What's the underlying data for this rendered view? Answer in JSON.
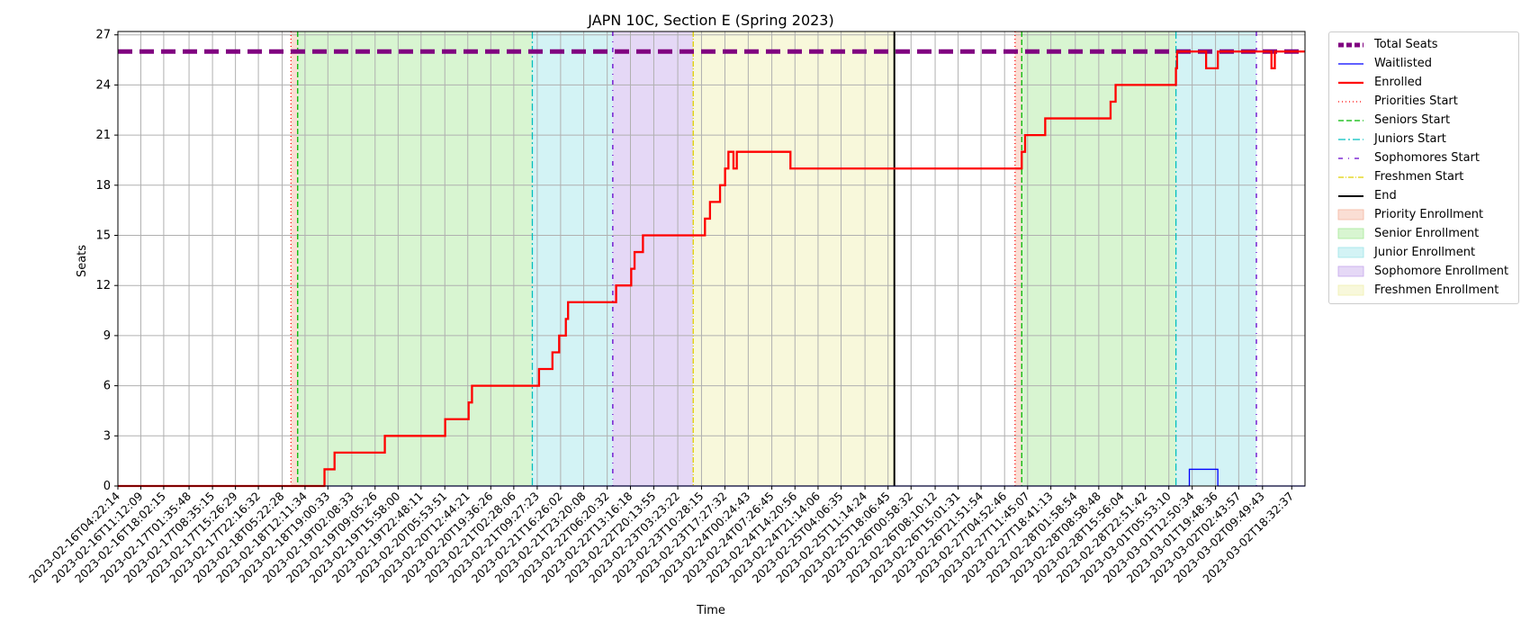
{
  "chart_data": {
    "type": "line",
    "title": "JAPN 10C, Section E (Spring 2023)",
    "xlabel": "Time",
    "ylabel": "Seats",
    "ylim": [
      0,
      27.2
    ],
    "yticks": [
      0,
      3,
      6,
      9,
      12,
      15,
      18,
      21,
      24,
      27
    ],
    "xlim": [
      "2023-02-16T04:22:14",
      "2023-03-02T22:30:00"
    ],
    "x_tick_labels": [
      "2023-02-16T04:22:14",
      "2023-02-16T11:12:09",
      "2023-02-16T18:02:15",
      "2023-02-17T01:35:48",
      "2023-02-17T08:35:15",
      "2023-02-17T15:26:29",
      "2023-02-17T22:16:32",
      "2023-02-18T05:22:28",
      "2023-02-18T12:11:34",
      "2023-02-18T19:00:33",
      "2023-02-19T02:08:33",
      "2023-02-19T09:05:26",
      "2023-02-19T15:58:00",
      "2023-02-19T22:48:11",
      "2023-02-20T05:53:51",
      "2023-02-20T12:44:21",
      "2023-02-20T19:36:26",
      "2023-02-21T02:28:06",
      "2023-02-21T09:27:23",
      "2023-02-21T16:26:02",
      "2023-02-21T23:20:08",
      "2023-02-22T06:20:32",
      "2023-02-22T13:16:18",
      "2023-02-22T20:13:55",
      "2023-02-23T03:23:22",
      "2023-02-23T10:28:15",
      "2023-02-23T17:27:32",
      "2023-02-24T00:24:43",
      "2023-02-24T07:26:45",
      "2023-02-24T14:20:56",
      "2023-02-24T21:14:06",
      "2023-02-25T04:06:35",
      "2023-02-25T11:14:24",
      "2023-02-25T18:06:45",
      "2023-02-26T00:58:32",
      "2023-02-26T08:10:12",
      "2023-02-26T15:01:31",
      "2023-02-26T21:51:54",
      "2023-02-27T04:52:46",
      "2023-02-27T11:45:07",
      "2023-02-27T18:41:13",
      "2023-02-28T01:58:54",
      "2023-02-28T08:58:48",
      "2023-02-28T15:56:04",
      "2023-02-28T22:51:42",
      "2023-03-01T05:53:10",
      "2023-03-01T12:50:34",
      "2023-03-01T19:48:36",
      "2023-03-02T02:43:57",
      "2023-03-02T09:49:43",
      "2023-03-02T18:32:37"
    ],
    "grid": true,
    "legend_position": "outside-right",
    "phase_lines": [
      {
        "name": "Priorities Start",
        "x": "2023-02-18T08:00:00",
        "color": "#ff0000",
        "dash": "1,3",
        "width": 1.3
      },
      {
        "name": "Seniors Start",
        "x": "2023-02-18T10:00:00",
        "color": "#00b800",
        "dash": "6,3",
        "width": 1.3
      },
      {
        "name": "Juniors Start",
        "x": "2023-02-21T08:00:00",
        "color": "#00bfbf",
        "dash": "8,3,2,3",
        "width": 1.3
      },
      {
        "name": "Sophomores Start",
        "x": "2023-02-22T08:00:00",
        "color": "#6600cc",
        "dash": "5,6,1,6",
        "width": 1.3
      },
      {
        "name": "Freshmen Start",
        "x": "2023-02-23T08:00:00",
        "color": "#e0d000",
        "dash": "6,2,1,2",
        "width": 1.3
      },
      {
        "name": "End",
        "x": "2023-02-25T20:00:00",
        "color": "#000000",
        "dash": "",
        "width": 2
      },
      {
        "name": "",
        "x": "2023-02-27T08:00:00",
        "color": "#ff0000",
        "dash": "1,3",
        "width": 1.3
      },
      {
        "name": "",
        "x": "2023-02-27T10:00:00",
        "color": "#00b800",
        "dash": "6,3",
        "width": 1.3
      },
      {
        "name": "",
        "x": "2023-03-01T08:00:00",
        "color": "#00bfbf",
        "dash": "8,3,2,3",
        "width": 1.3
      },
      {
        "name": "",
        "x": "2023-03-02T08:00:00",
        "color": "#6600cc",
        "dash": "5,6,1,6",
        "width": 1.3
      }
    ],
    "phase_spans": [
      {
        "name": "Priority Enrollment",
        "start": "2023-02-18T08:00:00",
        "end": "2023-02-18T10:00:00",
        "color": "#f4b6a0"
      },
      {
        "name": "Senior Enrollment",
        "start": "2023-02-18T10:00:00",
        "end": "2023-02-21T08:00:00",
        "color": "#a8e898"
      },
      {
        "name": "Junior Enrollment",
        "start": "2023-02-21T08:00:00",
        "end": "2023-02-22T08:00:00",
        "color": "#9ee4e8"
      },
      {
        "name": "Sophomore Enrollment",
        "start": "2023-02-22T08:00:00",
        "end": "2023-02-23T08:00:00",
        "color": "#c6a8ec"
      },
      {
        "name": "Freshmen Enrollment",
        "start": "2023-02-23T08:00:00",
        "end": "2023-02-25T20:00:00",
        "color": "#f0f0b0"
      },
      {
        "name": "",
        "start": "2023-02-27T08:00:00",
        "end": "2023-02-27T10:00:00",
        "color": "#f4b6a0"
      },
      {
        "name": "",
        "start": "2023-02-27T10:00:00",
        "end": "2023-03-01T08:00:00",
        "color": "#a8e898"
      },
      {
        "name": "",
        "start": "2023-03-01T08:00:00",
        "end": "2023-03-02T08:00:00",
        "color": "#9ee4e8"
      }
    ],
    "series": [
      {
        "name": "Total Seats",
        "color": "#800080",
        "style": "dashed-thick",
        "points": [
          [
            "2023-02-16T04:22:14",
            26
          ],
          [
            "2023-03-02T22:30:00",
            26
          ]
        ]
      },
      {
        "name": "Waitlisted",
        "color": "#0000ff",
        "style": "thin",
        "points": [
          [
            "2023-02-16T04:22:14",
            0
          ],
          [
            "2023-03-01T12:00:00",
            0
          ],
          [
            "2023-03-01T12:00:00",
            1
          ],
          [
            "2023-03-01T20:30:00",
            1
          ],
          [
            "2023-03-01T20:30:00",
            0
          ],
          [
            "2023-03-02T22:30:00",
            0
          ]
        ]
      },
      {
        "name": "Enrolled",
        "color": "#ff0000",
        "style": "step",
        "points": [
          [
            "2023-02-16T04:22:14",
            0
          ],
          [
            "2023-02-18T18:00:00",
            1
          ],
          [
            "2023-02-18T21:00:00",
            2
          ],
          [
            "2023-02-19T12:00:00",
            3
          ],
          [
            "2023-02-20T06:00:00",
            4
          ],
          [
            "2023-02-20T13:00:00",
            5
          ],
          [
            "2023-02-20T14:00:00",
            6
          ],
          [
            "2023-02-21T10:00:00",
            7
          ],
          [
            "2023-02-21T14:00:00",
            8
          ],
          [
            "2023-02-21T16:00:00",
            9
          ],
          [
            "2023-02-21T18:00:00",
            10
          ],
          [
            "2023-02-21T18:40:00",
            11
          ],
          [
            "2023-02-22T09:00:00",
            12
          ],
          [
            "2023-02-22T13:30:00",
            13
          ],
          [
            "2023-02-22T14:30:00",
            14
          ],
          [
            "2023-02-22T17:00:00",
            15
          ],
          [
            "2023-02-23T11:30:00",
            16
          ],
          [
            "2023-02-23T13:00:00",
            17
          ],
          [
            "2023-02-23T16:00:00",
            18
          ],
          [
            "2023-02-23T17:30:00",
            19
          ],
          [
            "2023-02-23T18:30:00",
            20
          ],
          [
            "2023-02-23T20:00:00",
            19
          ],
          [
            "2023-02-23T21:00:00",
            20
          ],
          [
            "2023-02-24T13:00:00",
            19
          ],
          [
            "2023-02-27T10:00:00",
            20
          ],
          [
            "2023-02-27T11:00:00",
            21
          ],
          [
            "2023-02-27T17:00:00",
            22
          ],
          [
            "2023-02-28T12:30:00",
            23
          ],
          [
            "2023-02-28T14:00:00",
            24
          ],
          [
            "2023-03-01T08:00:00",
            25
          ],
          [
            "2023-03-01T08:20:00",
            26
          ],
          [
            "2023-03-01T17:00:00",
            25
          ],
          [
            "2023-03-01T20:30:00",
            26
          ],
          [
            "2023-03-02T12:30:00",
            25
          ],
          [
            "2023-03-02T13:30:00",
            26
          ],
          [
            "2023-03-02T22:30:00",
            26
          ]
        ]
      }
    ],
    "legend": [
      {
        "label": "Total Seats",
        "kind": "line",
        "color": "#800080",
        "dash": "6,3",
        "width": 5
      },
      {
        "label": "Waitlisted",
        "kind": "line",
        "color": "#0000ff",
        "dash": "",
        "width": 1.2
      },
      {
        "label": "Enrolled",
        "kind": "line",
        "color": "#ff0000",
        "dash": "",
        "width": 2.2
      },
      {
        "label": "Priorities Start",
        "kind": "line",
        "color": "#ff0000",
        "dash": "1,3",
        "width": 1.3
      },
      {
        "label": "Seniors Start",
        "kind": "line",
        "color": "#00b800",
        "dash": "6,3",
        "width": 1.3
      },
      {
        "label": "Juniors Start",
        "kind": "line",
        "color": "#00bfbf",
        "dash": "8,3,2,3",
        "width": 1.3
      },
      {
        "label": "Sophomores Start",
        "kind": "line",
        "color": "#6600cc",
        "dash": "5,6,1,6",
        "width": 1.3
      },
      {
        "label": "Freshmen Start",
        "kind": "line",
        "color": "#e0d000",
        "dash": "6,2,1,2",
        "width": 1.3
      },
      {
        "label": "End",
        "kind": "line",
        "color": "#000000",
        "dash": "",
        "width": 2
      },
      {
        "label": "Priority Enrollment",
        "kind": "patch",
        "color": "#f4b6a0"
      },
      {
        "label": "Senior Enrollment",
        "kind": "patch",
        "color": "#a8e898"
      },
      {
        "label": "Junior Enrollment",
        "kind": "patch",
        "color": "#9ee4e8"
      },
      {
        "label": "Sophomore Enrollment",
        "kind": "patch",
        "color": "#c6a8ec"
      },
      {
        "label": "Freshmen Enrollment",
        "kind": "patch",
        "color": "#f0f0b0"
      }
    ]
  }
}
